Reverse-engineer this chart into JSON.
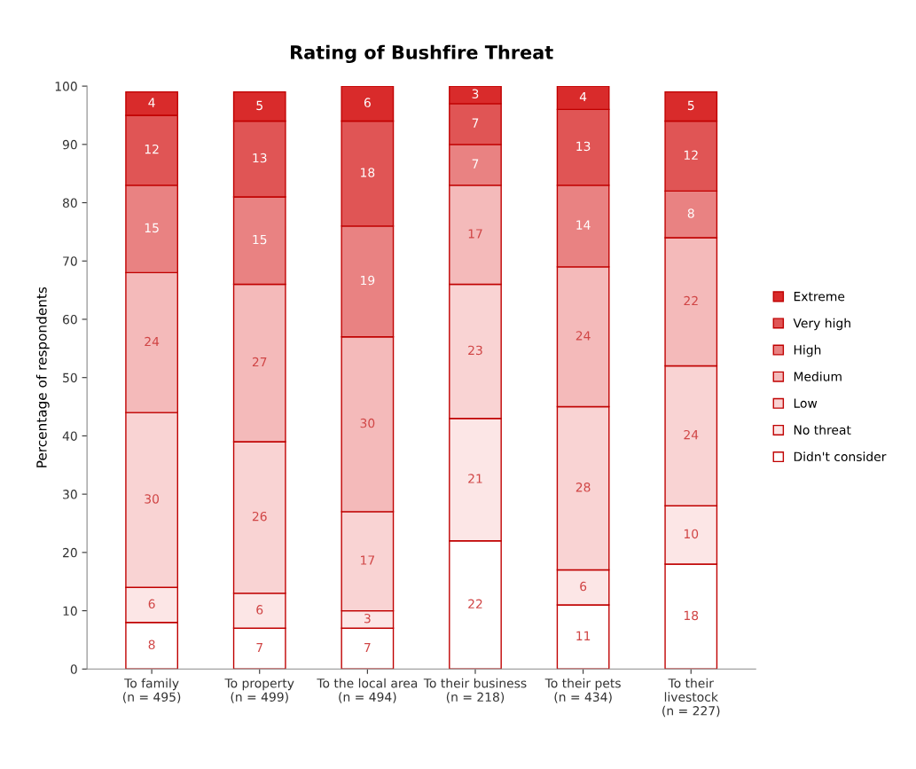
{
  "chart_data": {
    "type": "bar",
    "title": "Rating of Bushfire Threat",
    "ylabel": "Percentage of respondents",
    "categories": [
      "To family\n(n = 495)",
      "To property\n(n = 499)",
      "To the local area\n(n = 494)",
      "To their business\n(n = 218)",
      "To their pets\n(n = 434)",
      "To their\nlivestock\n(n = 227)"
    ],
    "stacked": true,
    "data_labels": true,
    "legend": "right",
    "grid": false,
    "ylim": [
      0,
      100
    ],
    "yticks": [
      0,
      10,
      20,
      30,
      40,
      50,
      60,
      70,
      80,
      90,
      100
    ],
    "series": [
      {
        "name": "Didn't consider",
        "color": "#ffffff",
        "values": [
          8,
          7,
          7,
          22,
          11,
          18
        ]
      },
      {
        "name": "No threat",
        "color": "#fce6e6",
        "values": [
          6,
          6,
          3,
          21,
          6,
          10
        ]
      },
      {
        "name": "Low",
        "color": "#f9d3d3",
        "values": [
          30,
          26,
          17,
          23,
          28,
          24
        ]
      },
      {
        "name": "Medium",
        "color": "#f4baba",
        "values": [
          24,
          27,
          30,
          17,
          24,
          22
        ]
      },
      {
        "name": "High",
        "color": "#e98282",
        "values": [
          15,
          15,
          19,
          7,
          14,
          8
        ]
      },
      {
        "name": "Very high",
        "color": "#e05555",
        "values": [
          12,
          13,
          18,
          7,
          13,
          12
        ]
      },
      {
        "name": "Extreme",
        "color": "#d92b2b",
        "values": [
          4,
          5,
          6,
          3,
          4,
          5
        ]
      }
    ]
  }
}
